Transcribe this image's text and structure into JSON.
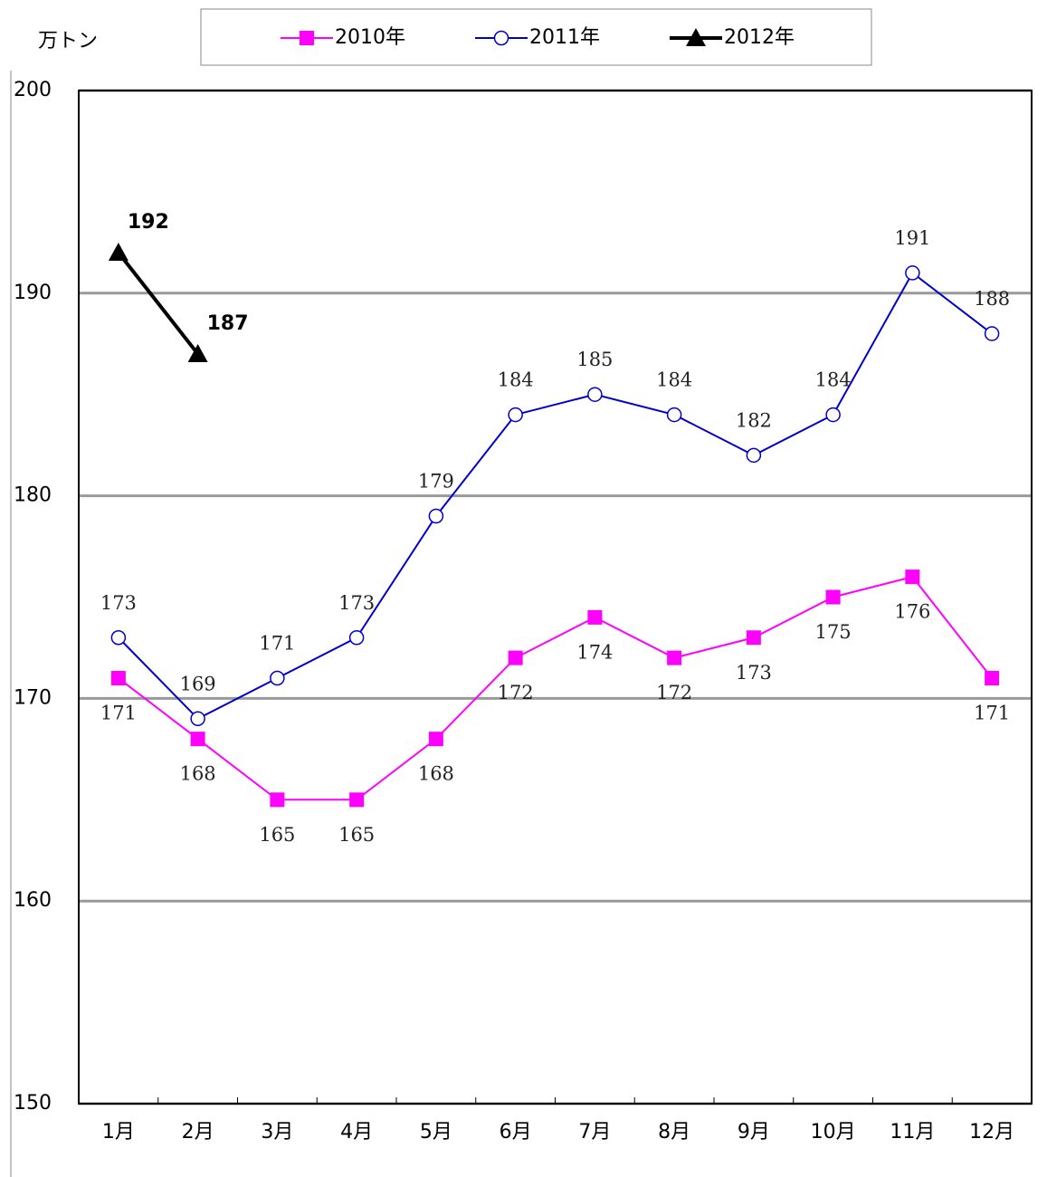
{
  "chart_data": {
    "type": "line",
    "y_axis_label": "万トン",
    "categories": [
      "1月",
      "2月",
      "3月",
      "4月",
      "5月",
      "6月",
      "7月",
      "8月",
      "9月",
      "10月",
      "11月",
      "12月"
    ],
    "series": [
      {
        "name": "2010年",
        "color": "#ff00ff",
        "marker": "square",
        "values": [
          171,
          168,
          165,
          165,
          168,
          172,
          174,
          172,
          173,
          175,
          176,
          171
        ]
      },
      {
        "name": "2011年",
        "color": "#0000cc",
        "marker": "circle",
        "values": [
          173,
          169,
          171,
          173,
          179,
          184,
          185,
          184,
          182,
          184,
          191,
          188
        ]
      },
      {
        "name": "2012年",
        "color": "#000000",
        "marker": "triangle",
        "values": [
          192,
          187,
          null,
          null,
          null,
          null,
          null,
          null,
          null,
          null,
          null,
          null
        ]
      }
    ],
    "ylim": [
      150,
      200
    ],
    "yticks": [
      150,
      160,
      170,
      180,
      190,
      200
    ],
    "grid": true
  }
}
